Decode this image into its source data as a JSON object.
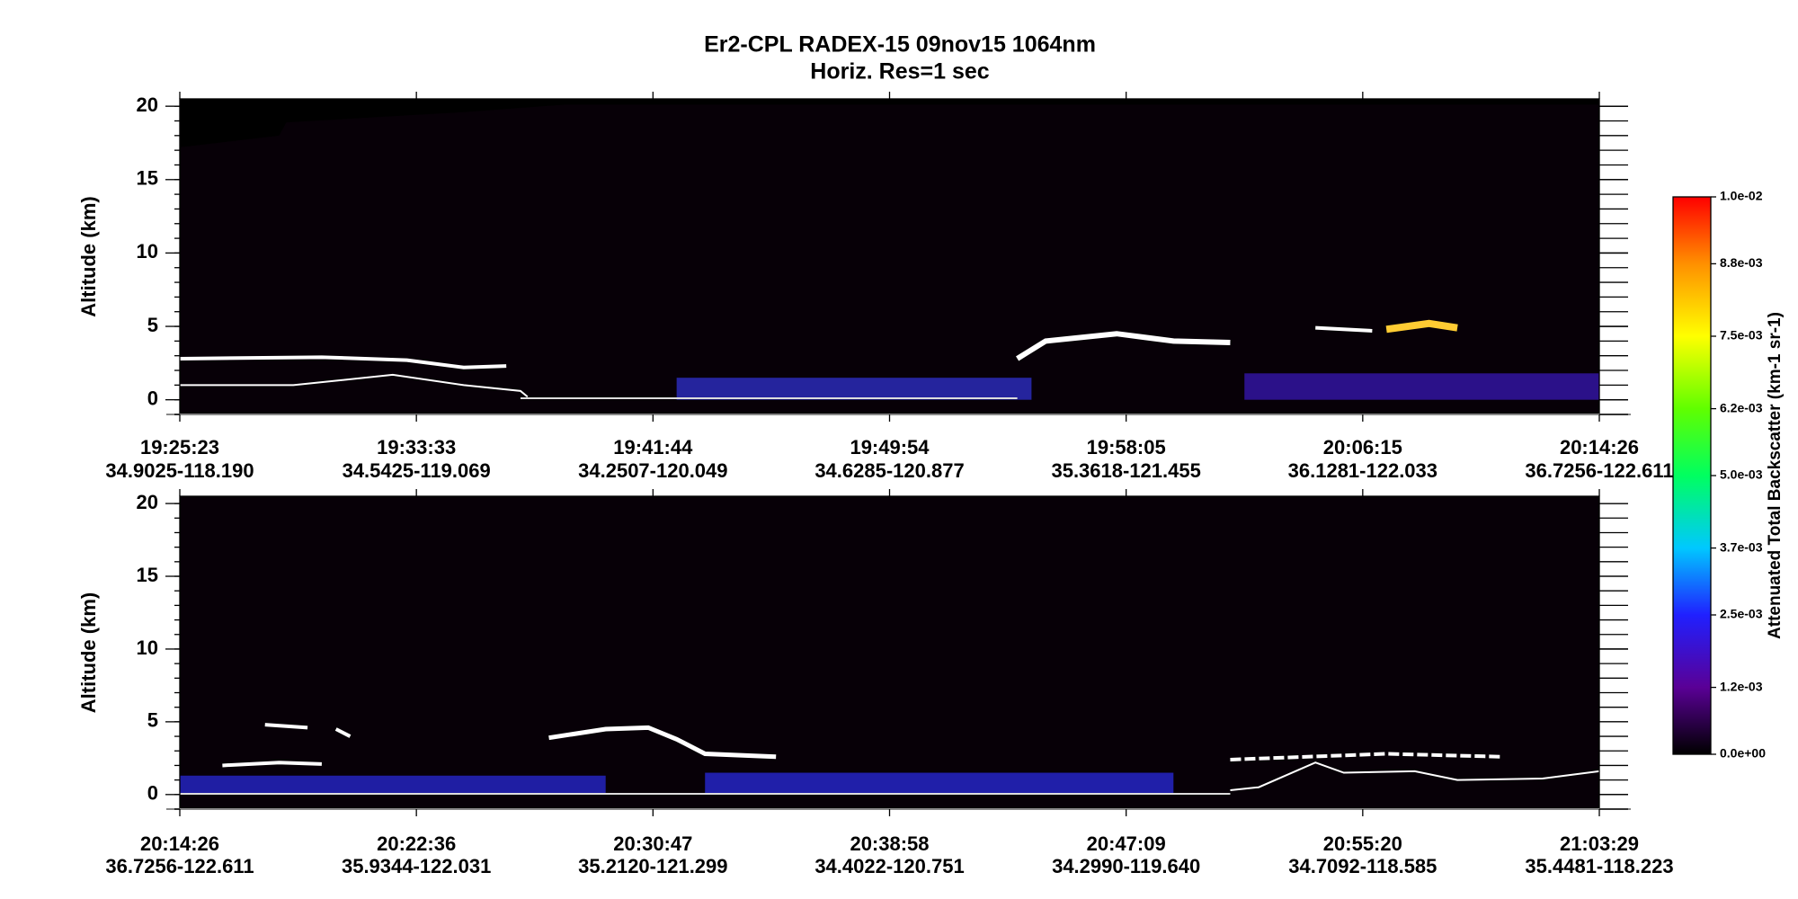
{
  "chart_data": [
    {
      "type": "curtain",
      "title": "Er2-CPL  RADEX-15  09nov15  1064nm",
      "subtitle": "Horiz. Res=1 sec",
      "ylabel": "Altitude (km)",
      "ylim": [
        -1,
        20.5
      ],
      "yticks": [
        0,
        5,
        10,
        15,
        20
      ],
      "x_labels": [
        {
          "time": "19:25:23",
          "position": "34.9025-118.190"
        },
        {
          "time": "19:33:33",
          "position": "34.5425-119.069"
        },
        {
          "time": "19:41:44",
          "position": "34.2507-120.049"
        },
        {
          "time": "19:49:54",
          "position": "34.6285-120.877"
        },
        {
          "time": "19:58:05",
          "position": "35.3618-121.455"
        },
        {
          "time": "20:06:15",
          "position": "36.1281-122.033"
        },
        {
          "time": "20:14:26",
          "position": "36.7256-122.611"
        }
      ],
      "colorbar": {
        "label": "Attenuated Total Backscatter (km-1 sr-1)",
        "lim": [
          0,
          0.01
        ],
        "ticks": [
          {
            "value": 0,
            "label": "0.0e+00"
          },
          {
            "value": 0.0012,
            "label": "1.2e-03"
          },
          {
            "value": 0.0025,
            "label": "2.5e-03"
          },
          {
            "value": 0.0037,
            "label": "3.7e-03"
          },
          {
            "value": 0.005,
            "label": "5.0e-03"
          },
          {
            "value": 0.0062,
            "label": "6.2e-03"
          },
          {
            "value": 0.0075,
            "label": "7.5e-03"
          },
          {
            "value": 0.0088,
            "label": "8.8e-03"
          },
          {
            "value": 0.01,
            "label": "1.0e-02"
          }
        ]
      }
    },
    {
      "type": "curtain",
      "ylabel": "Altitude (km)",
      "ylim": [
        -1,
        20.5
      ],
      "yticks": [
        0,
        5,
        10,
        15,
        20
      ],
      "x_labels": [
        {
          "time": "20:14:26",
          "position": "36.7256-122.611"
        },
        {
          "time": "20:22:36",
          "position": "35.9344-122.031"
        },
        {
          "time": "20:30:47",
          "position": "35.2120-121.299"
        },
        {
          "time": "20:38:58",
          "position": "34.4022-120.751"
        },
        {
          "time": "20:47:09",
          "position": "34.2990-119.640"
        },
        {
          "time": "20:55:20",
          "position": "34.7092-118.585"
        },
        {
          "time": "21:03:29",
          "position": "35.4481-118.223"
        }
      ]
    }
  ]
}
